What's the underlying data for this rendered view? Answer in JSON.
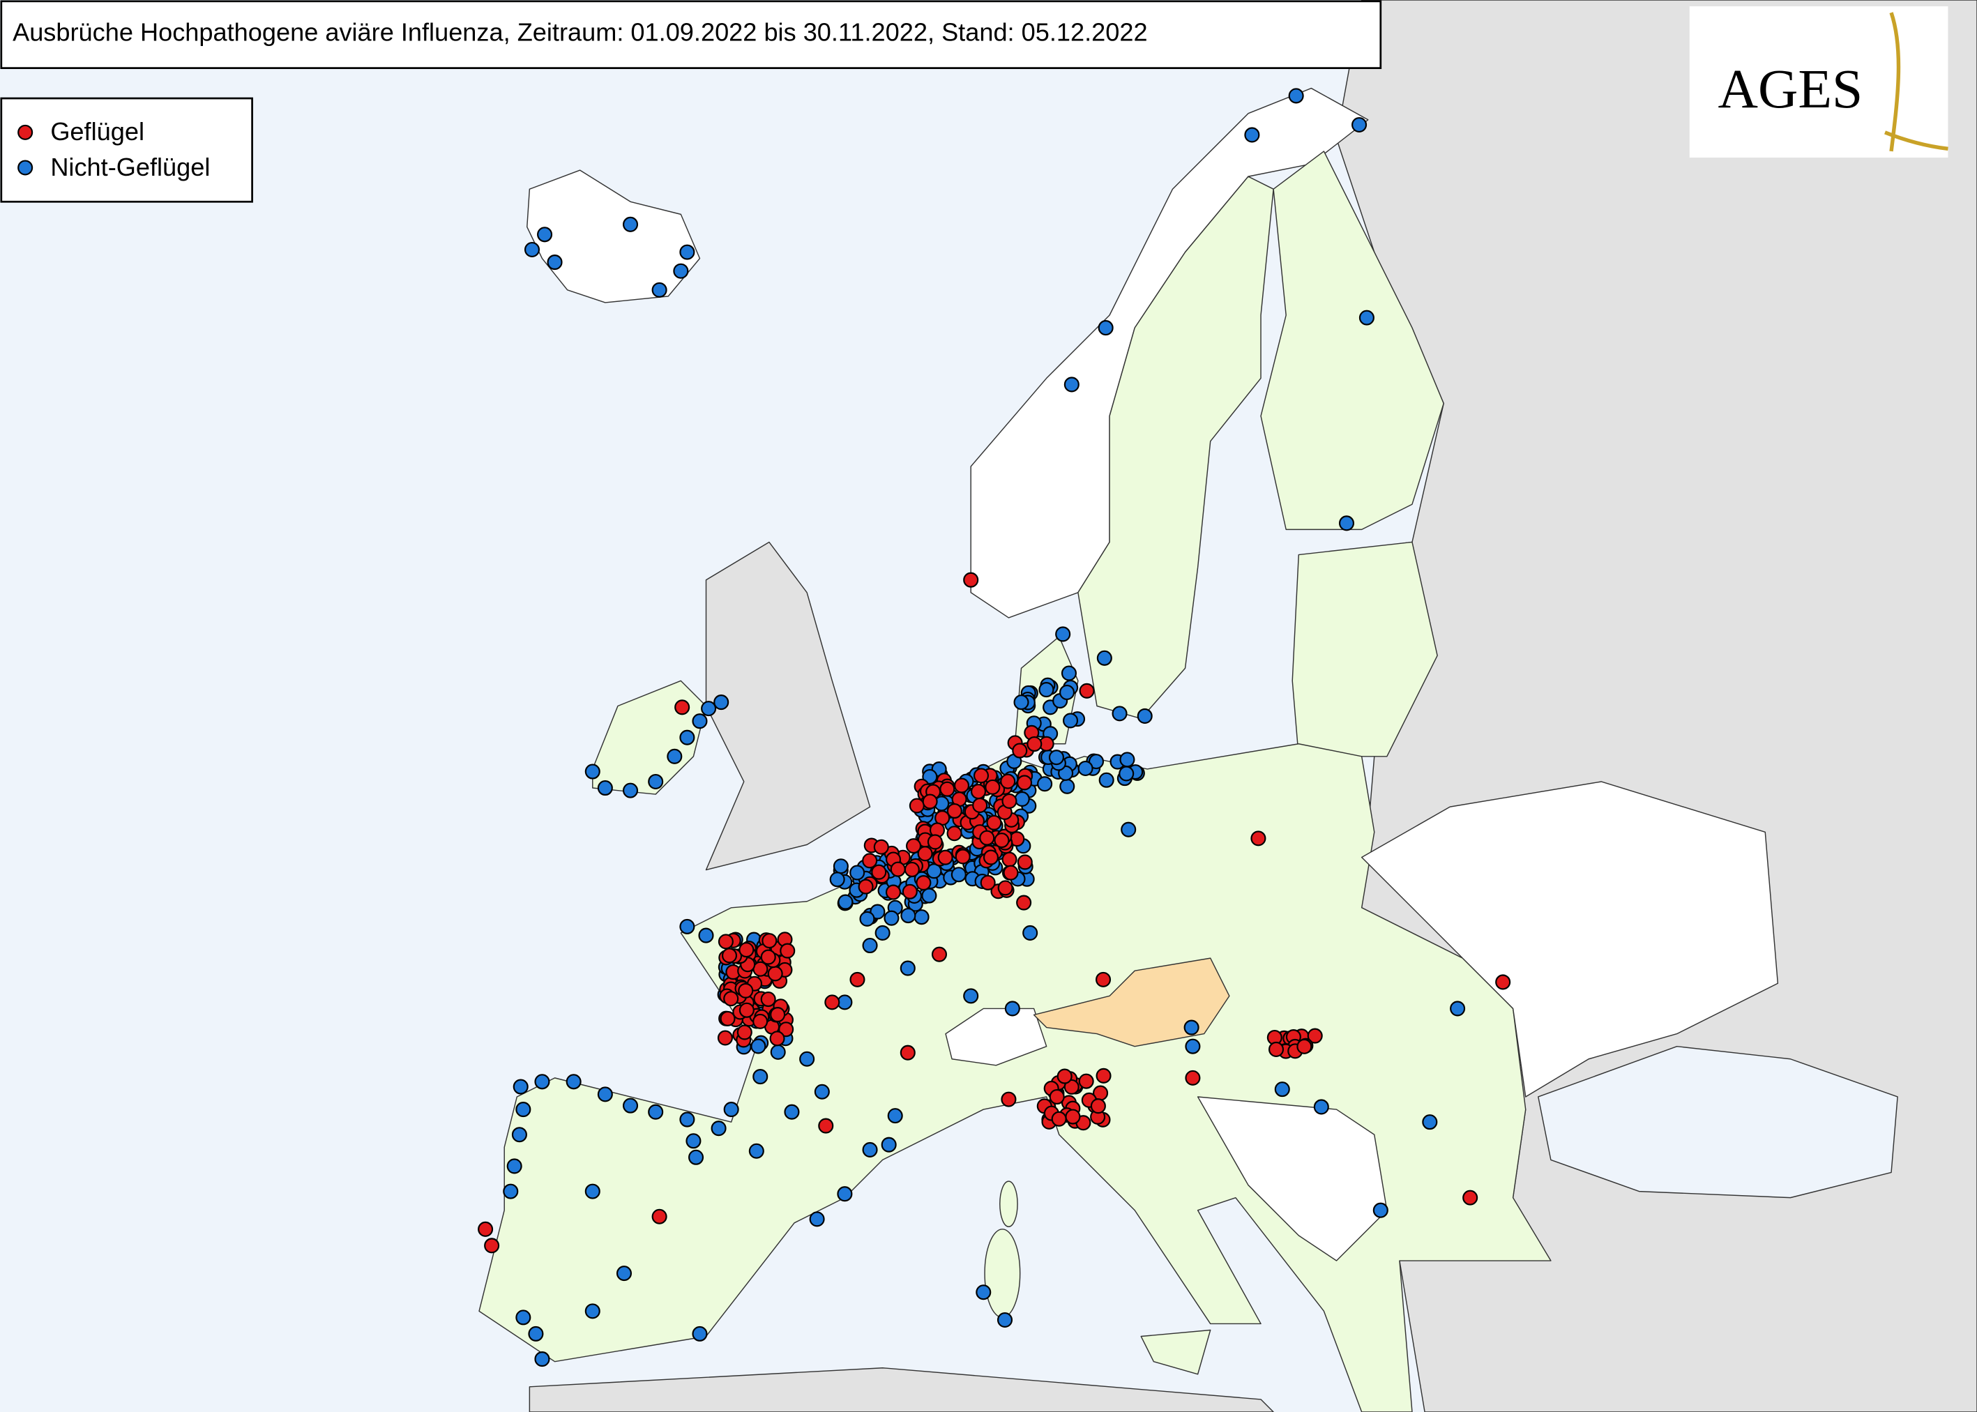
{
  "header": {
    "title": "Ausbrüche Hochpathogene aviäre Influenza, Zeitraum: 01.09.2022 bis 30.11.2022, Stand: 05.12.2022"
  },
  "legend": {
    "items": [
      {
        "label": "Geflügel",
        "color": "#e31a1c"
      },
      {
        "label": "Nicht-Geflügel",
        "color": "#1f78d8"
      }
    ]
  },
  "logo": {
    "text": "AGES"
  }
}
